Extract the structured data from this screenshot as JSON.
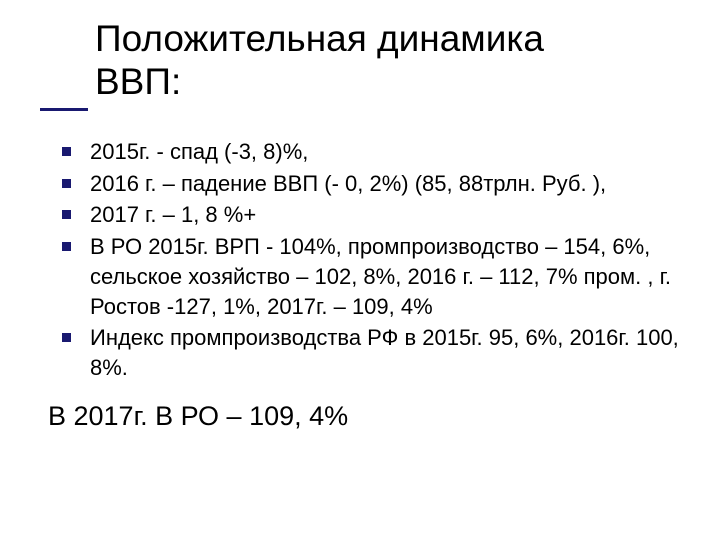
{
  "title_line1": "Положительная динамика",
  "title_line2": "ВВП:",
  "bullets": [
    "2015г. - спад (-3, 8)%,",
    "2016 г. – падение ВВП (- 0, 2%) (85, 88трлн. Руб. ),",
    "2017 г. – 1, 8 %+",
    "В РО 2015г. ВРП - 104%, промпроизводство – 154, 6%, сельское хозяйство – 102, 8%, 2016 г. – 112, 7% пром. , г. Ростов -127, 1%, 2017г. – 109, 4%",
    "Индекс промпроизводства РФ в 2015г. 95, 6%, 2016г. 100, 8%."
  ],
  "footer": "В 2017г. В РО – 109, 4%",
  "colors": {
    "accent": "#191970",
    "text": "#000000",
    "background": "#ffffff"
  }
}
